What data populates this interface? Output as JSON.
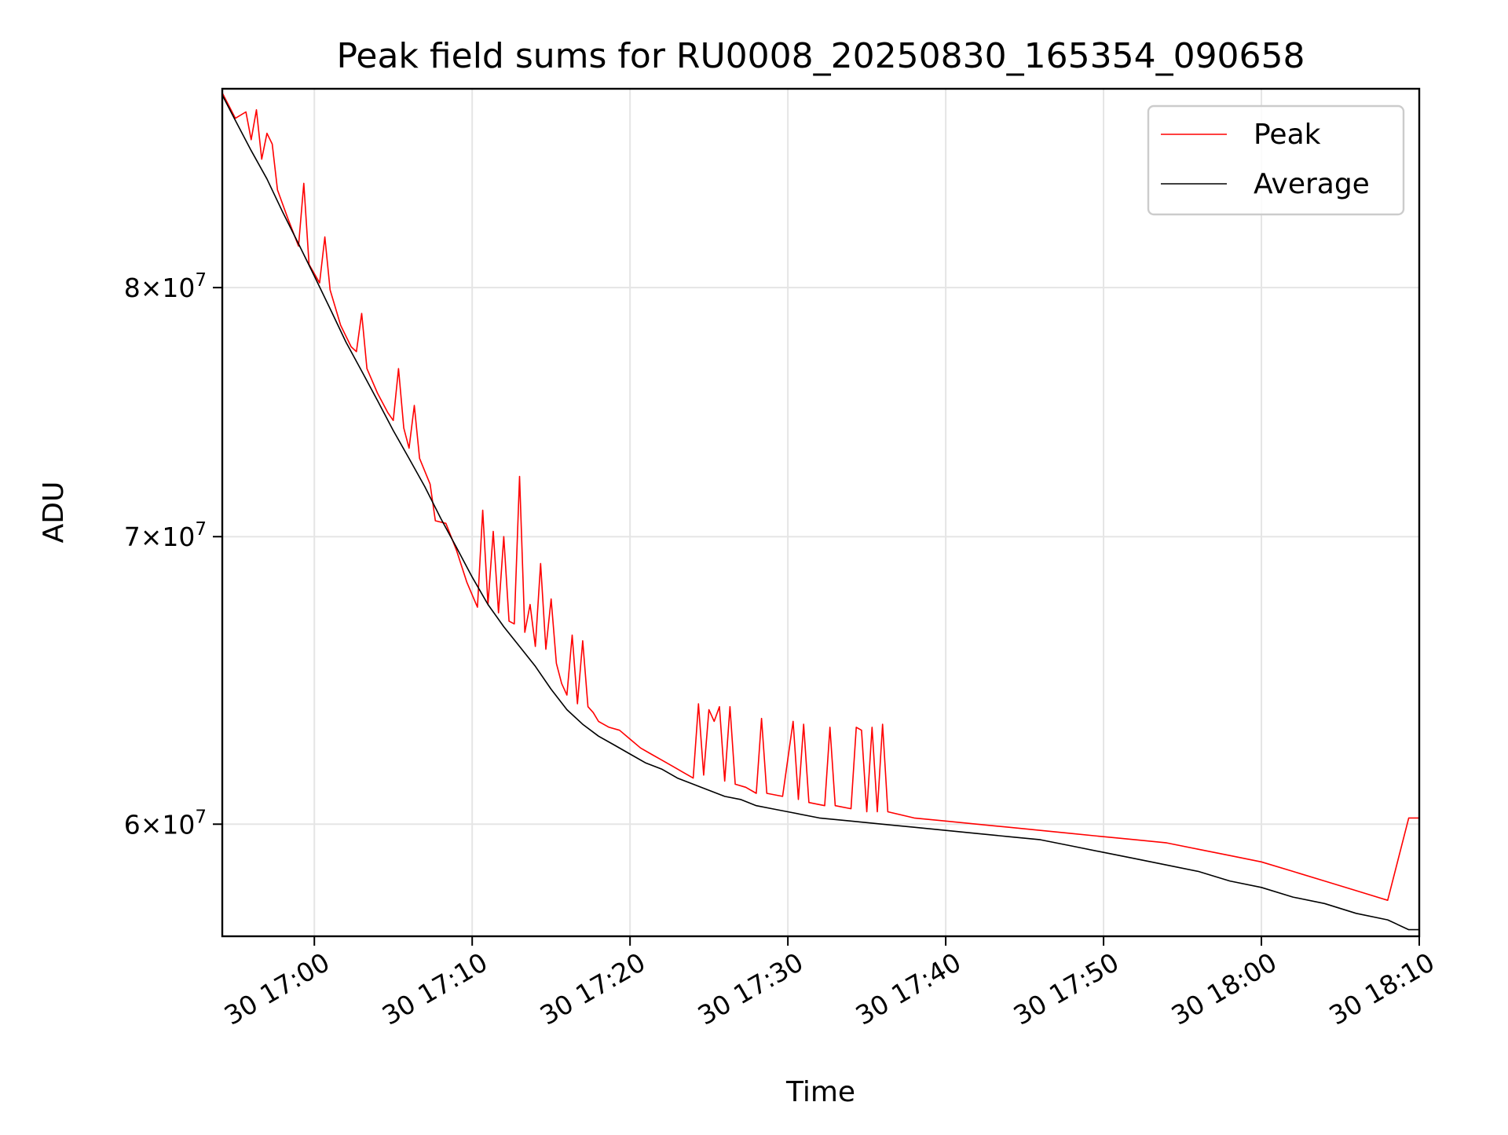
{
  "chart_data": {
    "type": "line",
    "title": "Peak field sums for RU0008_20250830_165354_090658",
    "xlabel": "Time",
    "ylabel": "ADU",
    "x_axis": "datetime",
    "y_scale": "log",
    "xlim": [
      "2025-08-30T16:54:10",
      "2025-08-30T18:10:00"
    ],
    "ylim": [
      56500000,
      89000000
    ],
    "x_ticks": [
      {
        "value": "2025-08-30T17:00:00",
        "label": "30 17:00"
      },
      {
        "value": "2025-08-30T17:10:00",
        "label": "30 17:10"
      },
      {
        "value": "2025-08-30T17:20:00",
        "label": "30 17:20"
      },
      {
        "value": "2025-08-30T17:30:00",
        "label": "30 17:30"
      },
      {
        "value": "2025-08-30T17:40:00",
        "label": "30 17:40"
      },
      {
        "value": "2025-08-30T17:50:00",
        "label": "30 17:50"
      },
      {
        "value": "2025-08-30T18:00:00",
        "label": "30 18:00"
      },
      {
        "value": "2025-08-30T18:10:00",
        "label": "30 18:10"
      }
    ],
    "y_ticks": [
      {
        "value": 60000000,
        "mantissa": "6",
        "exponent": "7"
      },
      {
        "value": 70000000,
        "mantissa": "7",
        "exponent": "7"
      },
      {
        "value": 80000000,
        "mantissa": "8",
        "exponent": "7"
      }
    ],
    "grid": true,
    "legend_position": "top-right",
    "series": [
      {
        "name": "Peak",
        "color": "#ff0000",
        "points": [
          [
            "2025-08-30T16:54:10",
            88800000
          ],
          [
            "2025-08-30T16:55:00",
            87600000
          ],
          [
            "2025-08-30T16:55:40",
            87900000
          ],
          [
            "2025-08-30T16:56:00",
            86600000
          ],
          [
            "2025-08-30T16:56:20",
            88000000
          ],
          [
            "2025-08-30T16:56:40",
            85700000
          ],
          [
            "2025-08-30T16:57:00",
            86900000
          ],
          [
            "2025-08-30T16:57:20",
            86400000
          ],
          [
            "2025-08-30T16:57:40",
            84300000
          ],
          [
            "2025-08-30T16:58:20",
            83000000
          ],
          [
            "2025-08-30T16:59:00",
            81800000
          ],
          [
            "2025-08-30T16:59:20",
            84600000
          ],
          [
            "2025-08-30T16:59:40",
            81000000
          ],
          [
            "2025-08-30T17:00:20",
            80200000
          ],
          [
            "2025-08-30T17:00:40",
            82200000
          ],
          [
            "2025-08-30T17:01:00",
            79900000
          ],
          [
            "2025-08-30T17:01:40",
            78400000
          ],
          [
            "2025-08-30T17:02:20",
            77500000
          ],
          [
            "2025-08-30T17:02:40",
            77300000
          ],
          [
            "2025-08-30T17:03:00",
            78900000
          ],
          [
            "2025-08-30T17:03:20",
            76600000
          ],
          [
            "2025-08-30T17:04:00",
            75600000
          ],
          [
            "2025-08-30T17:04:40",
            74800000
          ],
          [
            "2025-08-30T17:05:00",
            74500000
          ],
          [
            "2025-08-30T17:05:20",
            76600000
          ],
          [
            "2025-08-30T17:05:40",
            74200000
          ],
          [
            "2025-08-30T17:06:00",
            73400000
          ],
          [
            "2025-08-30T17:06:20",
            75100000
          ],
          [
            "2025-08-30T17:06:40",
            73000000
          ],
          [
            "2025-08-30T17:07:20",
            72000000
          ],
          [
            "2025-08-30T17:07:40",
            70600000
          ],
          [
            "2025-08-30T17:08:20",
            70500000
          ],
          [
            "2025-08-30T17:09:00",
            69500000
          ],
          [
            "2025-08-30T17:09:40",
            68300000
          ],
          [
            "2025-08-30T17:10:20",
            67400000
          ],
          [
            "2025-08-30T17:10:40",
            71000000
          ],
          [
            "2025-08-30T17:11:00",
            67500000
          ],
          [
            "2025-08-30T17:11:20",
            70200000
          ],
          [
            "2025-08-30T17:11:40",
            67200000
          ],
          [
            "2025-08-30T17:12:00",
            70000000
          ],
          [
            "2025-08-30T17:12:20",
            66900000
          ],
          [
            "2025-08-30T17:12:40",
            66800000
          ],
          [
            "2025-08-30T17:13:00",
            72300000
          ],
          [
            "2025-08-30T17:13:20",
            66500000
          ],
          [
            "2025-08-30T17:13:40",
            67500000
          ],
          [
            "2025-08-30T17:14:00",
            66000000
          ],
          [
            "2025-08-30T17:14:20",
            69000000
          ],
          [
            "2025-08-30T17:14:40",
            65900000
          ],
          [
            "2025-08-30T17:15:00",
            67700000
          ],
          [
            "2025-08-30T17:15:20",
            65400000
          ],
          [
            "2025-08-30T17:15:40",
            64700000
          ],
          [
            "2025-08-30T17:16:00",
            64300000
          ],
          [
            "2025-08-30T17:16:20",
            66400000
          ],
          [
            "2025-08-30T17:16:40",
            64000000
          ],
          [
            "2025-08-30T17:17:00",
            66200000
          ],
          [
            "2025-08-30T17:17:20",
            63900000
          ],
          [
            "2025-08-30T17:17:40",
            63700000
          ],
          [
            "2025-08-30T17:18:00",
            63400000
          ],
          [
            "2025-08-30T17:18:40",
            63200000
          ],
          [
            "2025-08-30T17:19:20",
            63100000
          ],
          [
            "2025-08-30T17:20:00",
            62800000
          ],
          [
            "2025-08-30T17:20:40",
            62500000
          ],
          [
            "2025-08-30T17:21:20",
            62300000
          ],
          [
            "2025-08-30T17:22:00",
            62100000
          ],
          [
            "2025-08-30T17:22:40",
            61900000
          ],
          [
            "2025-08-30T17:23:20",
            61700000
          ],
          [
            "2025-08-30T17:24:00",
            61500000
          ],
          [
            "2025-08-30T17:24:20",
            64000000
          ],
          [
            "2025-08-30T17:24:40",
            61600000
          ],
          [
            "2025-08-30T17:25:00",
            63800000
          ],
          [
            "2025-08-30T17:25:20",
            63400000
          ],
          [
            "2025-08-30T17:25:40",
            63900000
          ],
          [
            "2025-08-30T17:26:00",
            61400000
          ],
          [
            "2025-08-30T17:26:20",
            63900000
          ],
          [
            "2025-08-30T17:26:40",
            61300000
          ],
          [
            "2025-08-30T17:27:20",
            61200000
          ],
          [
            "2025-08-30T17:28:00",
            61000000
          ],
          [
            "2025-08-30T17:28:20",
            63500000
          ],
          [
            "2025-08-30T17:28:40",
            61000000
          ],
          [
            "2025-08-30T17:29:40",
            60900000
          ],
          [
            "2025-08-30T17:30:20",
            63400000
          ],
          [
            "2025-08-30T17:30:40",
            60800000
          ],
          [
            "2025-08-30T17:31:00",
            63300000
          ],
          [
            "2025-08-30T17:31:20",
            60700000
          ],
          [
            "2025-08-30T17:32:20",
            60600000
          ],
          [
            "2025-08-30T17:32:40",
            63200000
          ],
          [
            "2025-08-30T17:33:00",
            60600000
          ],
          [
            "2025-08-30T17:34:00",
            60500000
          ],
          [
            "2025-08-30T17:34:20",
            63200000
          ],
          [
            "2025-08-30T17:34:40",
            63100000
          ],
          [
            "2025-08-30T17:35:00",
            60400000
          ],
          [
            "2025-08-30T17:35:20",
            63200000
          ],
          [
            "2025-08-30T17:35:40",
            60400000
          ],
          [
            "2025-08-30T17:36:00",
            63300000
          ],
          [
            "2025-08-30T17:36:20",
            60400000
          ],
          [
            "2025-08-30T17:38:00",
            60200000
          ],
          [
            "2025-08-30T17:40:00",
            60100000
          ],
          [
            "2025-08-30T17:42:00",
            60000000
          ],
          [
            "2025-08-30T17:44:00",
            59900000
          ],
          [
            "2025-08-30T17:46:00",
            59800000
          ],
          [
            "2025-08-30T17:48:00",
            59700000
          ],
          [
            "2025-08-30T17:50:00",
            59600000
          ],
          [
            "2025-08-30T17:52:00",
            59500000
          ],
          [
            "2025-08-30T17:54:00",
            59400000
          ],
          [
            "2025-08-30T17:56:00",
            59200000
          ],
          [
            "2025-08-30T17:58:00",
            59000000
          ],
          [
            "2025-08-30T18:00:00",
            58800000
          ],
          [
            "2025-08-30T18:02:00",
            58500000
          ],
          [
            "2025-08-30T18:04:00",
            58200000
          ],
          [
            "2025-08-30T18:06:00",
            57900000
          ],
          [
            "2025-08-30T18:08:00",
            57600000
          ],
          [
            "2025-08-30T18:09:20",
            60200000
          ],
          [
            "2025-08-30T18:10:00",
            60200000
          ]
        ]
      },
      {
        "name": "Average",
        "color": "#000000",
        "points": [
          [
            "2025-08-30T16:54:10",
            88700000
          ],
          [
            "2025-08-30T16:55:00",
            87500000
          ],
          [
            "2025-08-30T16:56:00",
            86100000
          ],
          [
            "2025-08-30T16:57:00",
            84800000
          ],
          [
            "2025-08-30T16:58:00",
            83300000
          ],
          [
            "2025-08-30T16:59:00",
            81900000
          ],
          [
            "2025-08-30T17:00:00",
            80500000
          ],
          [
            "2025-08-30T17:01:00",
            79100000
          ],
          [
            "2025-08-30T17:02:00",
            77700000
          ],
          [
            "2025-08-30T17:03:00",
            76500000
          ],
          [
            "2025-08-30T17:04:00",
            75300000
          ],
          [
            "2025-08-30T17:05:00",
            74100000
          ],
          [
            "2025-08-30T17:06:00",
            73000000
          ],
          [
            "2025-08-30T17:07:00",
            71900000
          ],
          [
            "2025-08-30T17:08:00",
            70700000
          ],
          [
            "2025-08-30T17:09:00",
            69600000
          ],
          [
            "2025-08-30T17:10:00",
            68500000
          ],
          [
            "2025-08-30T17:11:00",
            67500000
          ],
          [
            "2025-08-30T17:12:00",
            66700000
          ],
          [
            "2025-08-30T17:13:00",
            66000000
          ],
          [
            "2025-08-30T17:14:00",
            65300000
          ],
          [
            "2025-08-30T17:15:00",
            64500000
          ],
          [
            "2025-08-30T17:16:00",
            63800000
          ],
          [
            "2025-08-30T17:17:00",
            63300000
          ],
          [
            "2025-08-30T17:18:00",
            62900000
          ],
          [
            "2025-08-30T17:19:00",
            62600000
          ],
          [
            "2025-08-30T17:20:00",
            62300000
          ],
          [
            "2025-08-30T17:21:00",
            62000000
          ],
          [
            "2025-08-30T17:22:00",
            61800000
          ],
          [
            "2025-08-30T17:23:00",
            61500000
          ],
          [
            "2025-08-30T17:24:00",
            61300000
          ],
          [
            "2025-08-30T17:25:00",
            61100000
          ],
          [
            "2025-08-30T17:26:00",
            60900000
          ],
          [
            "2025-08-30T17:27:00",
            60800000
          ],
          [
            "2025-08-30T17:28:00",
            60600000
          ],
          [
            "2025-08-30T17:29:00",
            60500000
          ],
          [
            "2025-08-30T17:30:00",
            60400000
          ],
          [
            "2025-08-30T17:32:00",
            60200000
          ],
          [
            "2025-08-30T17:34:00",
            60100000
          ],
          [
            "2025-08-30T17:36:00",
            60000000
          ],
          [
            "2025-08-30T17:38:00",
            59900000
          ],
          [
            "2025-08-30T17:40:00",
            59800000
          ],
          [
            "2025-08-30T17:42:00",
            59700000
          ],
          [
            "2025-08-30T17:44:00",
            59600000
          ],
          [
            "2025-08-30T17:46:00",
            59500000
          ],
          [
            "2025-08-30T17:48:00",
            59300000
          ],
          [
            "2025-08-30T17:50:00",
            59100000
          ],
          [
            "2025-08-30T17:52:00",
            58900000
          ],
          [
            "2025-08-30T17:54:00",
            58700000
          ],
          [
            "2025-08-30T17:56:00",
            58500000
          ],
          [
            "2025-08-30T17:58:00",
            58200000
          ],
          [
            "2025-08-30T18:00:00",
            58000000
          ],
          [
            "2025-08-30T18:02:00",
            57700000
          ],
          [
            "2025-08-30T18:04:00",
            57500000
          ],
          [
            "2025-08-30T18:06:00",
            57200000
          ],
          [
            "2025-08-30T18:08:00",
            57000000
          ],
          [
            "2025-08-30T18:09:20",
            56700000
          ],
          [
            "2025-08-30T18:10:00",
            56700000
          ]
        ]
      }
    ]
  }
}
